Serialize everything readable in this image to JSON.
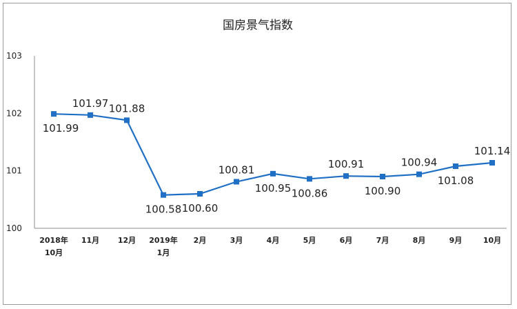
{
  "chart_data": {
    "type": "line",
    "title": "国房景气指数",
    "categories": [
      "2018年\n10月",
      "11月",
      "12月",
      "2019年\n1月",
      "2月",
      "3月",
      "4月",
      "5月",
      "6月",
      "7月",
      "8月",
      "9月",
      "10月"
    ],
    "series": [
      {
        "values": [
          101.99,
          101.97,
          101.88,
          100.58,
          100.6,
          100.81,
          100.95,
          100.86,
          100.91,
          100.9,
          100.94,
          101.08,
          101.14
        ],
        "color": "#1f6fc5"
      }
    ],
    "data_labels": [
      "101.99",
      "101.97",
      "101.88",
      "100.58",
      "100.60",
      "100.81",
      "100.95",
      "100.86",
      "100.91",
      "100.90",
      "100.94",
      "101.08",
      "101.14"
    ],
    "label_positions": [
      "below",
      "above",
      "above",
      "below",
      "below",
      "above",
      "below",
      "below",
      "above",
      "below",
      "above",
      "below",
      "above"
    ],
    "yticks": [
      "100",
      "101",
      "102",
      "103"
    ],
    "ylim": [
      100,
      103
    ],
    "grid": false,
    "legend": "none"
  }
}
